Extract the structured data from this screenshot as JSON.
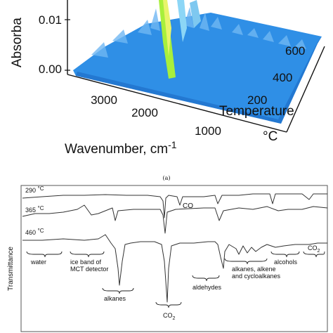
{
  "caption": "(a)",
  "chart_data": [
    {
      "type": "area",
      "panel": "a",
      "view": "3d-surface",
      "ylabel": "Absorba",
      "xlabel_prefix": "Wavenumber, cm",
      "xlabel_superscript": "-1",
      "zlabel_line1": "Temperature",
      "zlabel_line2": "°C",
      "y_ticks": [
        "0.00",
        "0.01"
      ],
      "x_ticks": [
        "3000",
        "2000",
        "1000"
      ],
      "z_ticks": [
        "200",
        "400",
        "600"
      ],
      "surface_color": "#2f8fe6",
      "peak_color": "#a8ef3c"
    },
    {
      "type": "line",
      "panel": "b",
      "ylabel": "Transmittance",
      "series": [
        {
          "name": "290 °C",
          "label_number": "290",
          "label_unit": "°C"
        },
        {
          "name": "365 °C",
          "label_number": "365",
          "label_unit": "°C"
        },
        {
          "name": "460 °C",
          "label_number": "460",
          "label_unit": "°C"
        }
      ],
      "annotations": {
        "co": "CO",
        "co2_right": "CO",
        "water": "water",
        "ice_line1": "ice band of",
        "ice_line2": "MCT detector",
        "alkanes": "alkanes",
        "co2_center": "CO",
        "aldehydes": "aldehydes",
        "mix_line1": "alkanes, alkene",
        "mix_line2": "and  cycloalkanes",
        "alcohols": "alcohols",
        "subscript_2": "2"
      },
      "line_color": "#333333"
    }
  ]
}
